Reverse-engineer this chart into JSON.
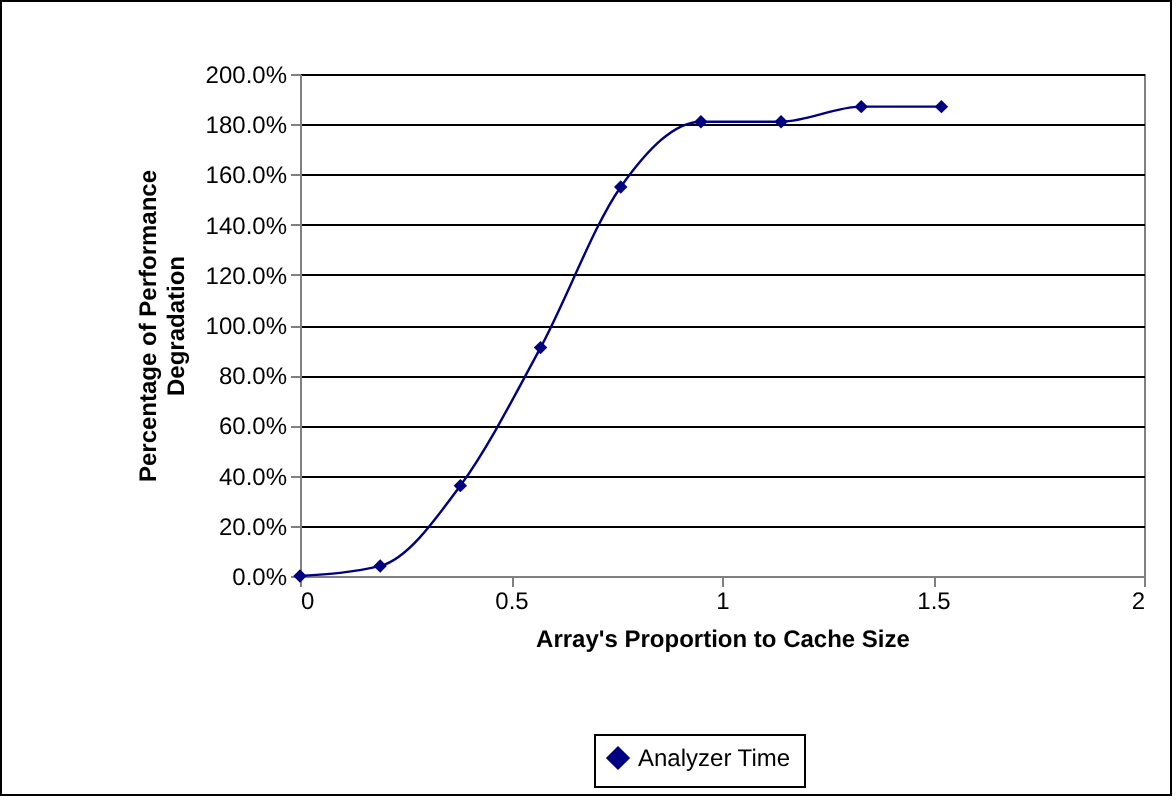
{
  "chart_data": {
    "type": "line",
    "xlabel": "Array's Proportion to Cache Size",
    "ylabel": "Percentage of Performance\nDegradation",
    "series": [
      {
        "name": "Analyzer Time",
        "color": "#000080",
        "x": [
          0,
          0.19,
          0.38,
          0.57,
          0.76,
          0.95,
          1.14,
          1.33,
          1.52
        ],
        "values": [
          0,
          4,
          36,
          91,
          155,
          181,
          181,
          187,
          187
        ]
      }
    ],
    "xlim": [
      0,
      2
    ],
    "xticks": [
      0,
      0.5,
      1,
      1.5,
      2
    ],
    "ylim": [
      0,
      200
    ],
    "yticks": [
      {
        "value": 0,
        "label": "0.0%"
      },
      {
        "value": 20,
        "label": "20.0%"
      },
      {
        "value": 40,
        "label": "40.0%"
      },
      {
        "value": 60,
        "label": "60.0%"
      },
      {
        "value": 80,
        "label": "80.0%"
      },
      {
        "value": 100,
        "label": "100.0%"
      },
      {
        "value": 120,
        "label": "120.0%"
      },
      {
        "value": 140,
        "label": "140.0%"
      },
      {
        "value": 160,
        "label": "160.0%"
      },
      {
        "value": 180,
        "label": "180.0%"
      },
      {
        "value": 200,
        "label": "200.0%"
      }
    ],
    "grid": "y",
    "legend": "bottom",
    "marker": "diamond",
    "line_style": "solid"
  }
}
